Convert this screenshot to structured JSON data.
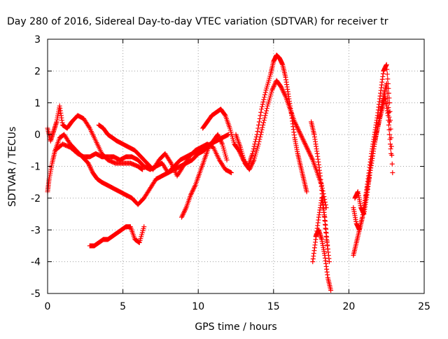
{
  "chart_data": {
    "type": "scatter",
    "title": "Day 280 of 2016, Sidereal Day-to-day VTEC variation (SDTVAR) for receiver tr",
    "xlabel": "GPS time / hours",
    "ylabel": "SDTVAR / TECUs",
    "xlim": [
      0,
      25
    ],
    "ylim": [
      -5,
      3
    ],
    "xticks": [
      "0",
      "5",
      "10",
      "15",
      "20",
      "25"
    ],
    "yticks": [
      "-5",
      "-4",
      "-3",
      "-2",
      "-1",
      "0",
      "1",
      "2",
      "3"
    ],
    "grid": true,
    "legend": "none",
    "marker": "+",
    "color": "#ff0000",
    "series": [
      {
        "x": [
          0.0,
          0.2,
          0.4,
          0.6,
          0.8,
          1.0,
          1.3,
          1.6,
          2.0,
          2.4,
          2.8,
          3.2,
          3.6,
          4.0,
          4.5,
          5.0,
          5.5,
          6.0,
          6.3
        ],
        "y": [
          0.2,
          -0.2,
          0.1,
          0.4,
          0.9,
          0.3,
          0.2,
          0.4,
          0.6,
          0.5,
          0.2,
          -0.2,
          -0.6,
          -0.8,
          -0.9,
          -0.9,
          -0.9,
          -1.0,
          -1.1
        ]
      },
      {
        "x": [
          0.0,
          0.1,
          0.3,
          0.5,
          0.8,
          1.1,
          1.5,
          1.9,
          2.3,
          2.7,
          3.0,
          3.3,
          3.6,
          4.0,
          4.4,
          4.8,
          5.2,
          5.6,
          6.0,
          6.4,
          6.8,
          7.2,
          7.6,
          8.0,
          8.4,
          8.8,
          9.2,
          9.6,
          10.0,
          10.4,
          10.8,
          11.2,
          11.6,
          12.0
        ],
        "y": [
          -1.8,
          -1.4,
          -0.9,
          -0.5,
          -0.1,
          0.0,
          -0.3,
          -0.5,
          -0.7,
          -0.9,
          -1.2,
          -1.4,
          -1.5,
          -1.6,
          -1.7,
          -1.8,
          -1.9,
          -2.0,
          -2.2,
          -2.0,
          -1.7,
          -1.4,
          -1.3,
          -1.2,
          -1.1,
          -1.0,
          -0.9,
          -0.8,
          -0.6,
          -0.5,
          -0.3,
          -0.2,
          -0.1,
          0.0
        ]
      },
      {
        "x": [
          0.5,
          1.0,
          1.5,
          2.0,
          2.4,
          2.8,
          3.2,
          3.6,
          4.0,
          4.4,
          4.8,
          5.2,
          5.6,
          6.0,
          6.4,
          6.8,
          7.2,
          7.6,
          8.0,
          8.4,
          8.8,
          9.2,
          9.6,
          10.0,
          10.4,
          10.8,
          11.2,
          11.6
        ],
        "y": [
          -0.5,
          -0.3,
          -0.4,
          -0.6,
          -0.7,
          -0.7,
          -0.6,
          -0.7,
          -0.7,
          -0.7,
          -0.8,
          -0.7,
          -0.7,
          -0.8,
          -1.0,
          -1.1,
          -1.0,
          -0.9,
          -1.2,
          -1.0,
          -0.8,
          -0.7,
          -0.6,
          -0.5,
          -0.4,
          -0.3,
          -0.2,
          -0.1
        ]
      },
      {
        "x": [
          3.4,
          3.7,
          4.0,
          4.3,
          4.6,
          5.0,
          5.4,
          5.8,
          6.2,
          6.6,
          7.0,
          7.4,
          7.8,
          8.2,
          8.6,
          9.0,
          9.4,
          9.8,
          10.2,
          10.6,
          11.0,
          11.4,
          11.8,
          12.2
        ],
        "y": [
          0.3,
          0.2,
          0.0,
          -0.1,
          -0.2,
          -0.3,
          -0.4,
          -0.5,
          -0.7,
          -0.9,
          -1.1,
          -0.8,
          -0.6,
          -0.9,
          -1.3,
          -1.0,
          -0.7,
          -0.5,
          -0.4,
          -0.3,
          -0.4,
          -0.8,
          -1.1,
          -1.2
        ]
      },
      {
        "x": [
          2.8,
          3.1,
          3.4,
          3.7,
          4.0,
          4.3,
          4.6,
          4.9,
          5.2,
          5.5,
          5.8,
          6.1,
          6.4
        ],
        "y": [
          -3.5,
          -3.5,
          -3.4,
          -3.3,
          -3.3,
          -3.2,
          -3.1,
          -3.0,
          -2.9,
          -2.9,
          -3.3,
          -3.4,
          -2.9
        ]
      },
      {
        "x": [
          8.9,
          9.2,
          9.5,
          9.8,
          10.1,
          10.4,
          10.7,
          11.0,
          11.3,
          11.6,
          11.9
        ],
        "y": [
          -2.6,
          -2.3,
          -1.9,
          -1.6,
          -1.2,
          -0.8,
          -0.4,
          -0.2,
          0.0,
          -0.3,
          -0.8
        ]
      },
      {
        "x": [
          10.3,
          10.6,
          10.9,
          11.2,
          11.5,
          11.8,
          12.1,
          12.4,
          12.7,
          13.0,
          13.3,
          13.6,
          13.9,
          14.2,
          14.5,
          14.8,
          15.0,
          15.2,
          15.4,
          15.6,
          15.8,
          16.0,
          16.2,
          16.4,
          16.6,
          16.8,
          17.0,
          17.2
        ],
        "y": [
          0.2,
          0.4,
          0.6,
          0.7,
          0.8,
          0.6,
          0.2,
          -0.3,
          -0.5,
          -0.8,
          -1.0,
          -0.6,
          0.0,
          0.8,
          1.4,
          1.9,
          2.3,
          2.5,
          2.4,
          2.2,
          1.8,
          1.2,
          0.6,
          -0.1,
          -0.6,
          -1.0,
          -1.4,
          -1.8
        ]
      },
      {
        "x": [
          12.5,
          12.8,
          13.1,
          13.4,
          13.7,
          14.0,
          14.3,
          14.6,
          14.9,
          15.2,
          15.5,
          15.8,
          16.1,
          16.4,
          16.7,
          17.0,
          17.3,
          17.6,
          17.9,
          18.2,
          18.5
        ],
        "y": [
          0.0,
          -0.4,
          -0.9,
          -1.1,
          -0.8,
          -0.3,
          0.3,
          0.9,
          1.4,
          1.7,
          1.5,
          1.2,
          0.8,
          0.4,
          0.1,
          -0.2,
          -0.5,
          -0.8,
          -1.2,
          -1.6,
          -2.3
        ]
      },
      {
        "x": [
          17.5,
          17.7,
          17.9,
          18.1,
          18.3,
          18.5,
          18.7
        ],
        "y": [
          0.4,
          0.0,
          -0.6,
          -1.3,
          -2.2,
          -3.2,
          -4.0
        ]
      },
      {
        "x": [
          17.8,
          18.0,
          18.2,
          18.4,
          18.6,
          18.8
        ],
        "y": [
          -3.2,
          -3.0,
          -3.3,
          -3.8,
          -4.5,
          -4.9
        ]
      },
      {
        "x": [
          17.6,
          17.8,
          18.0,
          18.2,
          18.4,
          18.6
        ],
        "y": [
          -4.0,
          -3.3,
          -2.6,
          -2.0,
          -2.6,
          -3.6
        ]
      },
      {
        "x": [
          20.3,
          20.5,
          20.7,
          20.9,
          21.1,
          21.3,
          21.5,
          21.7,
          21.9,
          22.1,
          22.3,
          22.5,
          22.7,
          22.9
        ],
        "y": [
          -3.8,
          -3.4,
          -3.0,
          -2.6,
          -2.0,
          -1.3,
          -0.6,
          0.0,
          0.6,
          1.3,
          2.0,
          2.2,
          1.0,
          -1.2
        ]
      },
      {
        "x": [
          20.3,
          20.5,
          20.7,
          20.9,
          21.1,
          21.3,
          21.5,
          21.7,
          21.9,
          22.1,
          22.3,
          22.5,
          22.7
        ],
        "y": [
          -2.3,
          -2.8,
          -3.0,
          -2.6,
          -2.0,
          -1.5,
          -0.9,
          -0.3,
          0.2,
          0.7,
          1.2,
          1.6,
          0.4
        ]
      },
      {
        "x": [
          20.4,
          20.6,
          20.8,
          21.0,
          21.2,
          21.4,
          21.6,
          21.8,
          22.0,
          22.2,
          22.4,
          22.6,
          22.8
        ],
        "y": [
          -2.0,
          -1.8,
          -2.3,
          -2.5,
          -1.9,
          -1.2,
          -0.6,
          0.0,
          0.4,
          0.8,
          1.2,
          0.6,
          -0.6
        ]
      }
    ]
  }
}
